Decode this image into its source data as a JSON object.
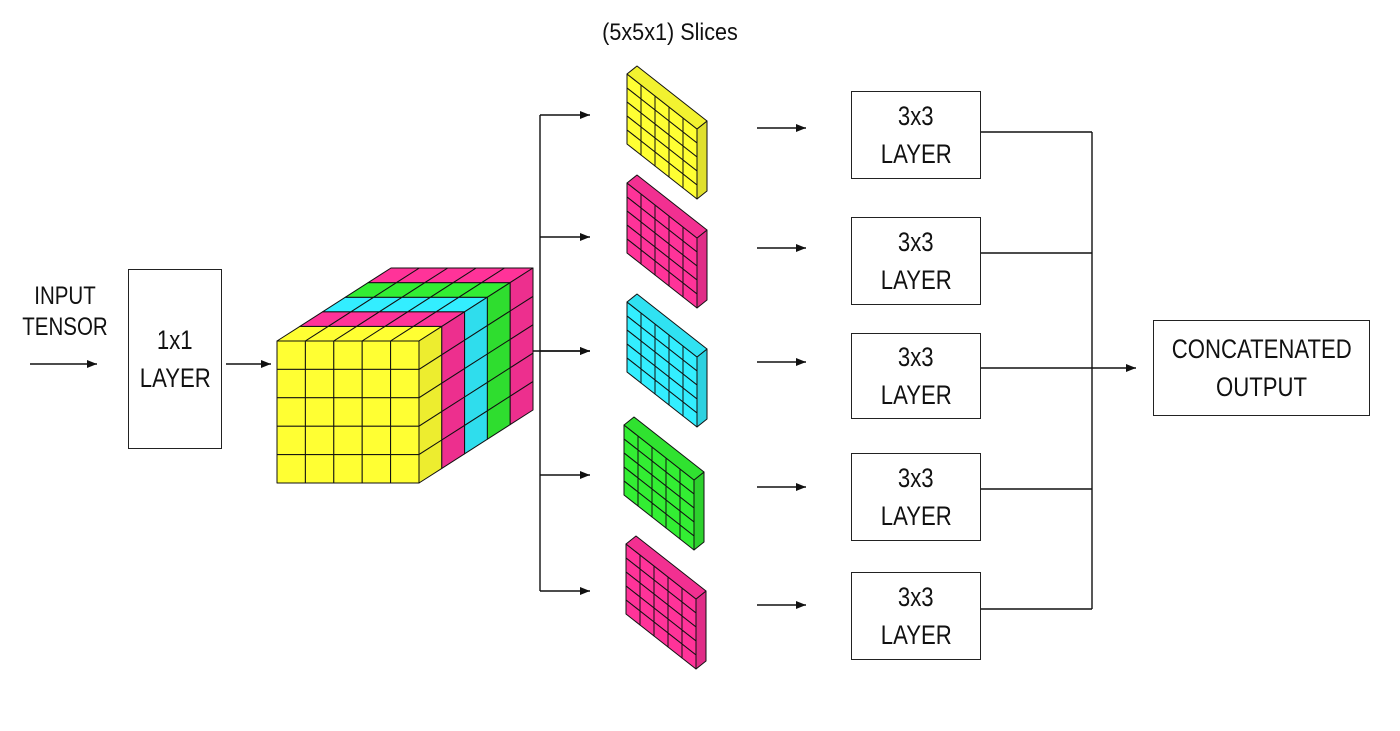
{
  "diagram": {
    "title": "(5x5x1) Slices",
    "input_label_line1": "INPUT",
    "input_label_line2": "TENSOR",
    "conv1x1": {
      "line1": "1x1",
      "line2": "LAYER"
    },
    "cube": {
      "grid": 5,
      "front_color": "#ffff33",
      "stripe_colors": [
        "#ff3399",
        "#33eeff",
        "#33ee33",
        "#ff3399"
      ]
    },
    "slices": [
      {
        "name": "slice-yellow",
        "color": "#ffff33"
      },
      {
        "name": "slice-magenta",
        "color": "#ff3399"
      },
      {
        "name": "slice-cyan",
        "color": "#33eeff"
      },
      {
        "name": "slice-green",
        "color": "#33ee33"
      },
      {
        "name": "slice-magenta-2",
        "color": "#ff3399"
      }
    ],
    "layers": [
      {
        "line1": "3x3",
        "line2": "LAYER"
      },
      {
        "line1": "3x3",
        "line2": "LAYER"
      },
      {
        "line1": "3x3",
        "line2": "LAYER"
      },
      {
        "line1": "3x3",
        "line2": "LAYER"
      },
      {
        "line1": "3x3",
        "line2": "LAYER"
      }
    ],
    "output": {
      "line1": "CONCATENATED",
      "line2": "OUTPUT"
    }
  }
}
